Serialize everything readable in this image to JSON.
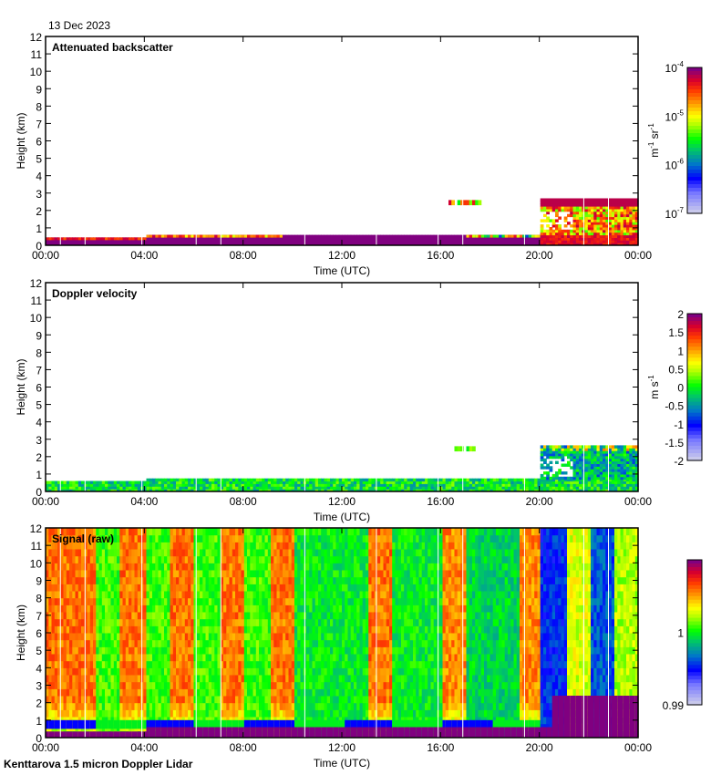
{
  "date": "13 Dec 2023",
  "footer": "Kenttarova 1.5 micron Doppler Lidar",
  "chart_data": [
    {
      "type": "heatmap",
      "title": "Attenuated backscatter",
      "xlabel": "Time (UTC)",
      "ylabel": "Height (km)",
      "xticks": [
        "00:00",
        "04:00",
        "08:00",
        "12:00",
        "16:00",
        "20:00",
        "00:00"
      ],
      "yticks": [
        "0",
        "1",
        "2",
        "3",
        "4",
        "5",
        "6",
        "7",
        "8",
        "9",
        "10",
        "11",
        "12"
      ],
      "xlim_hours": [
        0,
        24
      ],
      "ylim_km": [
        0,
        12
      ],
      "colorbar": {
        "label": "m-1 sr-1",
        "label_parts": [
          "m",
          "-1",
          " sr",
          "-1"
        ],
        "ticks": [
          "10-4",
          "10-5",
          "10-6",
          "10-7"
        ],
        "tick_exps": [
          "-4",
          "-5",
          "-6",
          "-7"
        ],
        "scale": "log",
        "range": [
          1e-07,
          0.0001
        ]
      },
      "features": [
        {
          "desc": "low layer",
          "t_start": 0,
          "t_end": 4.0,
          "h_top": 0.45
        },
        {
          "desc": "low layer",
          "t_start": 4.0,
          "t_end": 20.0,
          "h_top": 0.6
        },
        {
          "desc": "cloud",
          "t_start": 16.3,
          "t_end": 17.8,
          "h_bottom": 2.3,
          "h_top": 2.6
        },
        {
          "desc": "cloud",
          "t_start": 20.0,
          "t_end": 24.0,
          "h_bottom": 0.0,
          "h_top": 2.6
        }
      ]
    },
    {
      "type": "heatmap",
      "title": "Doppler velocity",
      "xlabel": "Time (UTC)",
      "ylabel": "Height (km)",
      "xticks": [
        "00:00",
        "04:00",
        "08:00",
        "12:00",
        "16:00",
        "20:00",
        "00:00"
      ],
      "yticks": [
        "0",
        "1",
        "2",
        "3",
        "4",
        "5",
        "6",
        "7",
        "8",
        "9",
        "10",
        "11",
        "12"
      ],
      "xlim_hours": [
        0,
        24
      ],
      "ylim_km": [
        0,
        12
      ],
      "colorbar": {
        "label": "m s-1",
        "label_parts": [
          "m s",
          "-1"
        ],
        "ticks": [
          "2",
          "1.5",
          "1",
          "0.5",
          "0",
          "-0.5",
          "-1",
          "-1.5",
          "-2"
        ],
        "range": [
          -2,
          2
        ]
      }
    },
    {
      "type": "heatmap",
      "title": "Signal (raw)",
      "xlabel": "Time (UTC)",
      "ylabel": "Height (km)",
      "xticks": [
        "00:00",
        "04:00",
        "08:00",
        "12:00",
        "16:00",
        "20:00",
        "00:00"
      ],
      "yticks": [
        "0",
        "1",
        "2",
        "3",
        "4",
        "5",
        "6",
        "7",
        "8",
        "9",
        "10",
        "11",
        "12"
      ],
      "xlim_hours": [
        0,
        24
      ],
      "ylim_km": [
        0,
        12
      ],
      "colorbar": {
        "ticks": [
          "1",
          "0.99"
        ],
        "range": [
          0.99,
          1.01
        ]
      }
    }
  ],
  "colors": {
    "purple": "#800080",
    "red": "#ff0000",
    "orange": "#ff8000",
    "yellow": "#ffff00",
    "green": "#00ff00",
    "teal": "#00a080",
    "blue": "#0000ff",
    "pale": "#d8d8e8"
  }
}
